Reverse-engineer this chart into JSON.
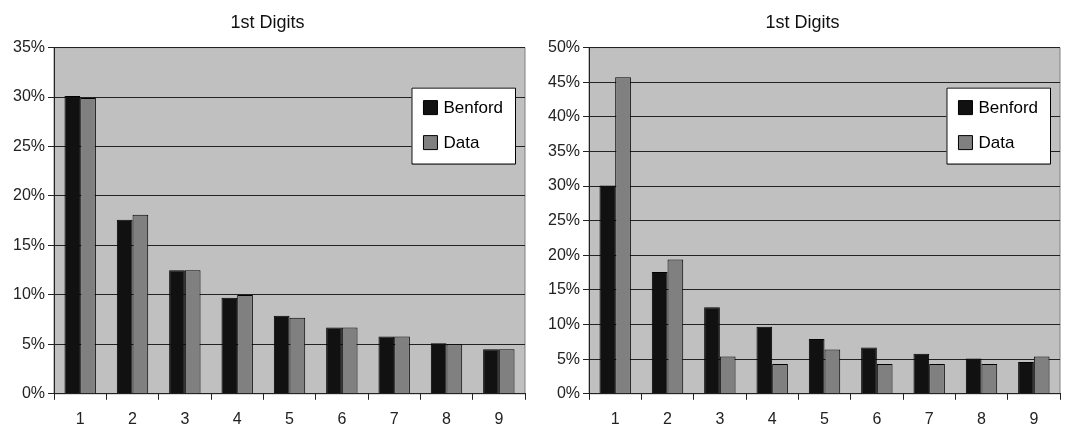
{
  "chart_data": [
    {
      "type": "bar",
      "title": "1st Digits",
      "categories": [
        "1",
        "2",
        "3",
        "4",
        "5",
        "6",
        "7",
        "8",
        "9"
      ],
      "series": [
        {
          "name": "Benford",
          "color": "#111111",
          "values": [
            30.1,
            17.6,
            12.5,
            9.7,
            7.9,
            6.7,
            5.8,
            5.1,
            4.5
          ]
        },
        {
          "name": "Data",
          "color": "#808080",
          "values": [
            29.9,
            18.1,
            12.5,
            10.0,
            7.7,
            6.7,
            5.8,
            5.0,
            4.5
          ]
        }
      ],
      "ylim": [
        0,
        35
      ],
      "yticks": [
        {
          "value": 0,
          "label": "0%"
        },
        {
          "value": 5,
          "label": "5%"
        },
        {
          "value": 10,
          "label": "10%"
        },
        {
          "value": 15,
          "label": "15%"
        },
        {
          "value": 20,
          "label": "20%"
        },
        {
          "value": 25,
          "label": "25%"
        },
        {
          "value": 30,
          "label": "30%"
        },
        {
          "value": 35,
          "label": "35%"
        }
      ],
      "grid": "y",
      "legend": "top right"
    },
    {
      "type": "bar",
      "title": "1st Digits",
      "categories": [
        "1",
        "2",
        "3",
        "4",
        "5",
        "6",
        "7",
        "8",
        "9"
      ],
      "series": [
        {
          "name": "Benford",
          "color": "#111111",
          "values": [
            30.1,
            17.6,
            12.5,
            9.7,
            7.9,
            6.7,
            5.8,
            5.1,
            4.6
          ]
        },
        {
          "name": "Data",
          "color": "#808080",
          "values": [
            45.7,
            19.4,
            5.4,
            4.3,
            6.4,
            4.3,
            4.3,
            4.3,
            5.4
          ]
        }
      ],
      "ylim": [
        0,
        50
      ],
      "yticks": [
        {
          "value": 0,
          "label": "0%"
        },
        {
          "value": 5,
          "label": "5%"
        },
        {
          "value": 10,
          "label": "10%"
        },
        {
          "value": 15,
          "label": "15%"
        },
        {
          "value": 20,
          "label": "20%"
        },
        {
          "value": 25,
          "label": "25%"
        },
        {
          "value": 30,
          "label": "30%"
        },
        {
          "value": 35,
          "label": "35%"
        },
        {
          "value": 40,
          "label": "40%"
        },
        {
          "value": 45,
          "label": "45%"
        },
        {
          "value": 50,
          "label": "50%"
        }
      ],
      "grid": "y",
      "legend": "top right"
    }
  ]
}
